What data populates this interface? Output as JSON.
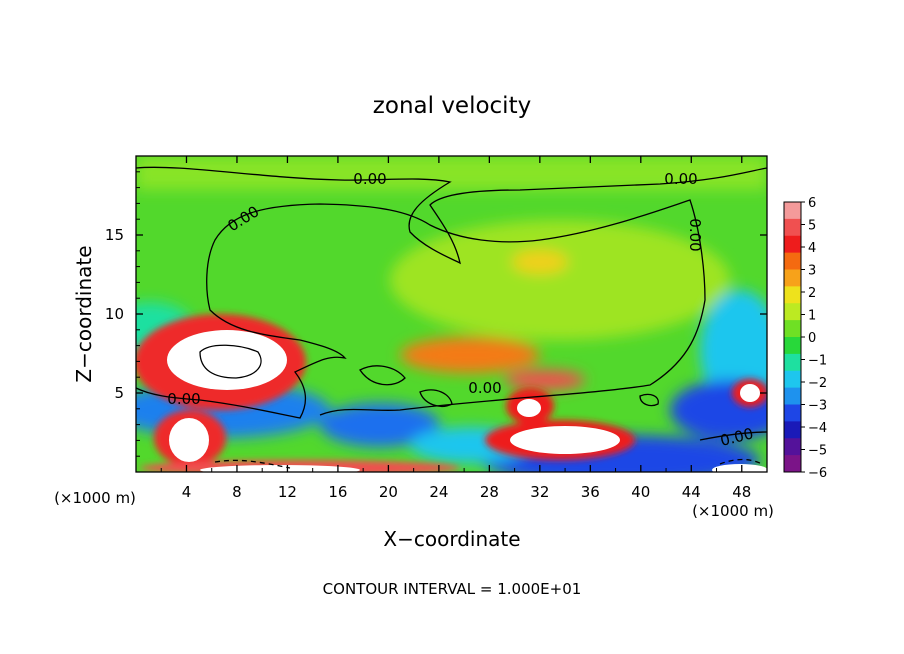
{
  "chart_data": {
    "type": "heatmap",
    "title": "zonal velocity",
    "xlabel": "X−coordinate",
    "ylabel": "Z−coordinate",
    "x_unit": "(×1000 m)",
    "footer": "CONTOUR INTERVAL = 1.000E+01",
    "xlim": [
      0,
      50
    ],
    "ylim": [
      0,
      20
    ],
    "x_ticks": [
      4,
      8,
      12,
      16,
      20,
      24,
      28,
      32,
      36,
      40,
      44,
      48
    ],
    "y_ticks": [
      5,
      10,
      15
    ],
    "colorbar": {
      "ticks": [
        6,
        5,
        4,
        3,
        2,
        1,
        0,
        -1,
        -2,
        -3,
        -4,
        -5,
        -6
      ],
      "colors": [
        "#f49a9a",
        "#f05050",
        "#ee1c1c",
        "#f46a10",
        "#f7a21a",
        "#eee21c",
        "#bcea22",
        "#6fe024",
        "#28d83a",
        "#1ee0a0",
        "#1ec6ee",
        "#1e92ee",
        "#1e46e6",
        "#1a1ab8",
        "#54129a",
        "#7b1488"
      ]
    },
    "contour_labels": [
      "0.00",
      "0.00",
      "0.00",
      "0.00",
      "0.00",
      "0.00",
      "0.00"
    ]
  }
}
